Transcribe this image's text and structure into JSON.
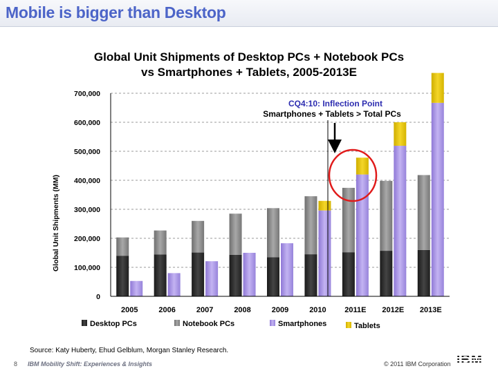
{
  "slide": {
    "title": "Mobile is bigger than Desktop",
    "source": "Source: Katy Huberty, Ehud Gelblum, Morgan Stanley Research.",
    "footer_page": "8",
    "footer_caption": "IBM Mobility Shift: Experiences & Insights",
    "footer_copyright": "© 2011 IBM Corporation",
    "footer_logo": "IBM"
  },
  "chart_data": {
    "type": "bar",
    "title_line1": "Global Unit Shipments of Desktop PCs + Notebook PCs",
    "title_line2": "vs Smartphones + Tablets, 2005-2013E",
    "ylabel": "Global Unit Shipments (MM)",
    "xlabel": "",
    "ylim": [
      0,
      700000
    ],
    "yticks": [
      {
        "value": 0,
        "label": "0"
      },
      {
        "value": 100000,
        "label": "100,000"
      },
      {
        "value": 200000,
        "label": "200,000"
      },
      {
        "value": 300000,
        "label": "300,000"
      },
      {
        "value": 400000,
        "label": "400,000"
      },
      {
        "value": 500000,
        "label": "500,000"
      },
      {
        "value": 600000,
        "label": "600,000"
      },
      {
        "value": 700000,
        "label": "700,000"
      }
    ],
    "grid": true,
    "categories": [
      "2005",
      "2006",
      "2007",
      "2008",
      "2009",
      "2010",
      "2011E",
      "2012E",
      "2013E"
    ],
    "stacks": [
      {
        "series": [
          "Desktop PCs",
          "Notebook PCs"
        ]
      },
      {
        "series": [
          "Smartphones",
          "Tablets"
        ]
      }
    ],
    "series": [
      {
        "name": "Desktop PCs",
        "color": "#2b2b2b",
        "values": [
          140000,
          144000,
          151000,
          143000,
          135000,
          145000,
          152000,
          157000,
          160000
        ]
      },
      {
        "name": "Notebook PCs",
        "color": "#8a8a8a",
        "values": [
          63000,
          83000,
          109000,
          142000,
          169000,
          200000,
          222000,
          241000,
          258000
        ]
      },
      {
        "name": "Smartphones",
        "color": "#a48fe0",
        "values": [
          53000,
          80000,
          121000,
          150000,
          183000,
          296000,
          420000,
          519000,
          667000
        ]
      },
      {
        "name": "Tablets",
        "color": "#e4c200",
        "values": [
          0,
          0,
          0,
          0,
          0,
          33000,
          58000,
          81000,
          103000
        ]
      }
    ],
    "legend_position": "bottom",
    "annotation": {
      "line1": "CQ4:10: Inflection Point",
      "line2": "Smartphones + Tablets > Total PCs",
      "target_category": "2011E"
    }
  }
}
